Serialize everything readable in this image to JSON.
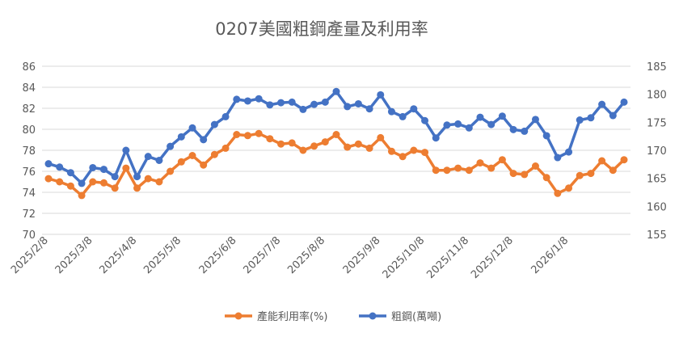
{
  "chart_data": {
    "type": "line",
    "title": "0207美國粗鋼產量及利用率",
    "xlabel": "",
    "ylabel": "",
    "y2label": "",
    "ylim": [
      70,
      86
    ],
    "y2lim": [
      155,
      185
    ],
    "yticks": [
      70,
      72,
      74,
      76,
      78,
      80,
      82,
      84,
      86
    ],
    "y2ticks": [
      155,
      160,
      165,
      170,
      175,
      180,
      185
    ],
    "xtick_labels": [
      "2025/2/8",
      "2025/3/8",
      "2025/4/8",
      "2025/5/8",
      "2025/6/8",
      "2025/7/8",
      "2025/8/8",
      "2025/9/8",
      "2025/10/8",
      "2025/11/8",
      "2025/12/8",
      "2026/1/8"
    ],
    "xtick_indices": [
      0,
      4,
      8,
      12,
      17,
      21,
      25,
      30,
      34,
      38,
      42,
      47
    ],
    "grid": true,
    "legend_position": "bottom",
    "series": [
      {
        "name": "產能利用率(%)",
        "axis": "left",
        "color": "#ED7D31",
        "values": [
          75.3,
          75.0,
          74.6,
          73.7,
          75.0,
          74.9,
          74.4,
          76.3,
          74.4,
          75.3,
          75.0,
          76.0,
          76.9,
          77.5,
          76.6,
          77.6,
          78.2,
          79.5,
          79.4,
          79.6,
          79.1,
          78.6,
          78.7,
          78.0,
          78.4,
          78.8,
          79.5,
          78.3,
          78.6,
          78.2,
          79.2,
          77.9,
          77.4,
          78.0,
          77.8,
          76.1,
          76.1,
          76.3,
          76.1,
          76.8,
          76.3,
          77.1,
          75.8,
          75.7,
          76.5,
          75.4,
          73.9,
          74.4,
          75.6,
          75.8,
          77.0,
          76.1,
          77.1
        ]
      },
      {
        "name": "粗鋼(萬噸)",
        "axis": "right",
        "color": "#4472C4",
        "values": [
          167.6,
          167.0,
          166.0,
          164.1,
          166.9,
          166.6,
          165.3,
          170.0,
          165.3,
          168.9,
          168.2,
          170.7,
          172.4,
          174.0,
          171.9,
          174.6,
          176.0,
          179.1,
          178.8,
          179.2,
          178.1,
          178.5,
          178.6,
          177.3,
          178.2,
          178.6,
          180.5,
          177.8,
          178.3,
          177.4,
          179.9,
          176.9,
          176.0,
          177.4,
          175.3,
          172.2,
          174.5,
          174.7,
          174.0,
          175.9,
          174.6,
          176.1,
          173.7,
          173.4,
          175.5,
          172.6,
          168.7,
          169.7,
          175.4,
          175.8,
          178.2,
          176.2,
          178.6
        ]
      }
    ]
  }
}
